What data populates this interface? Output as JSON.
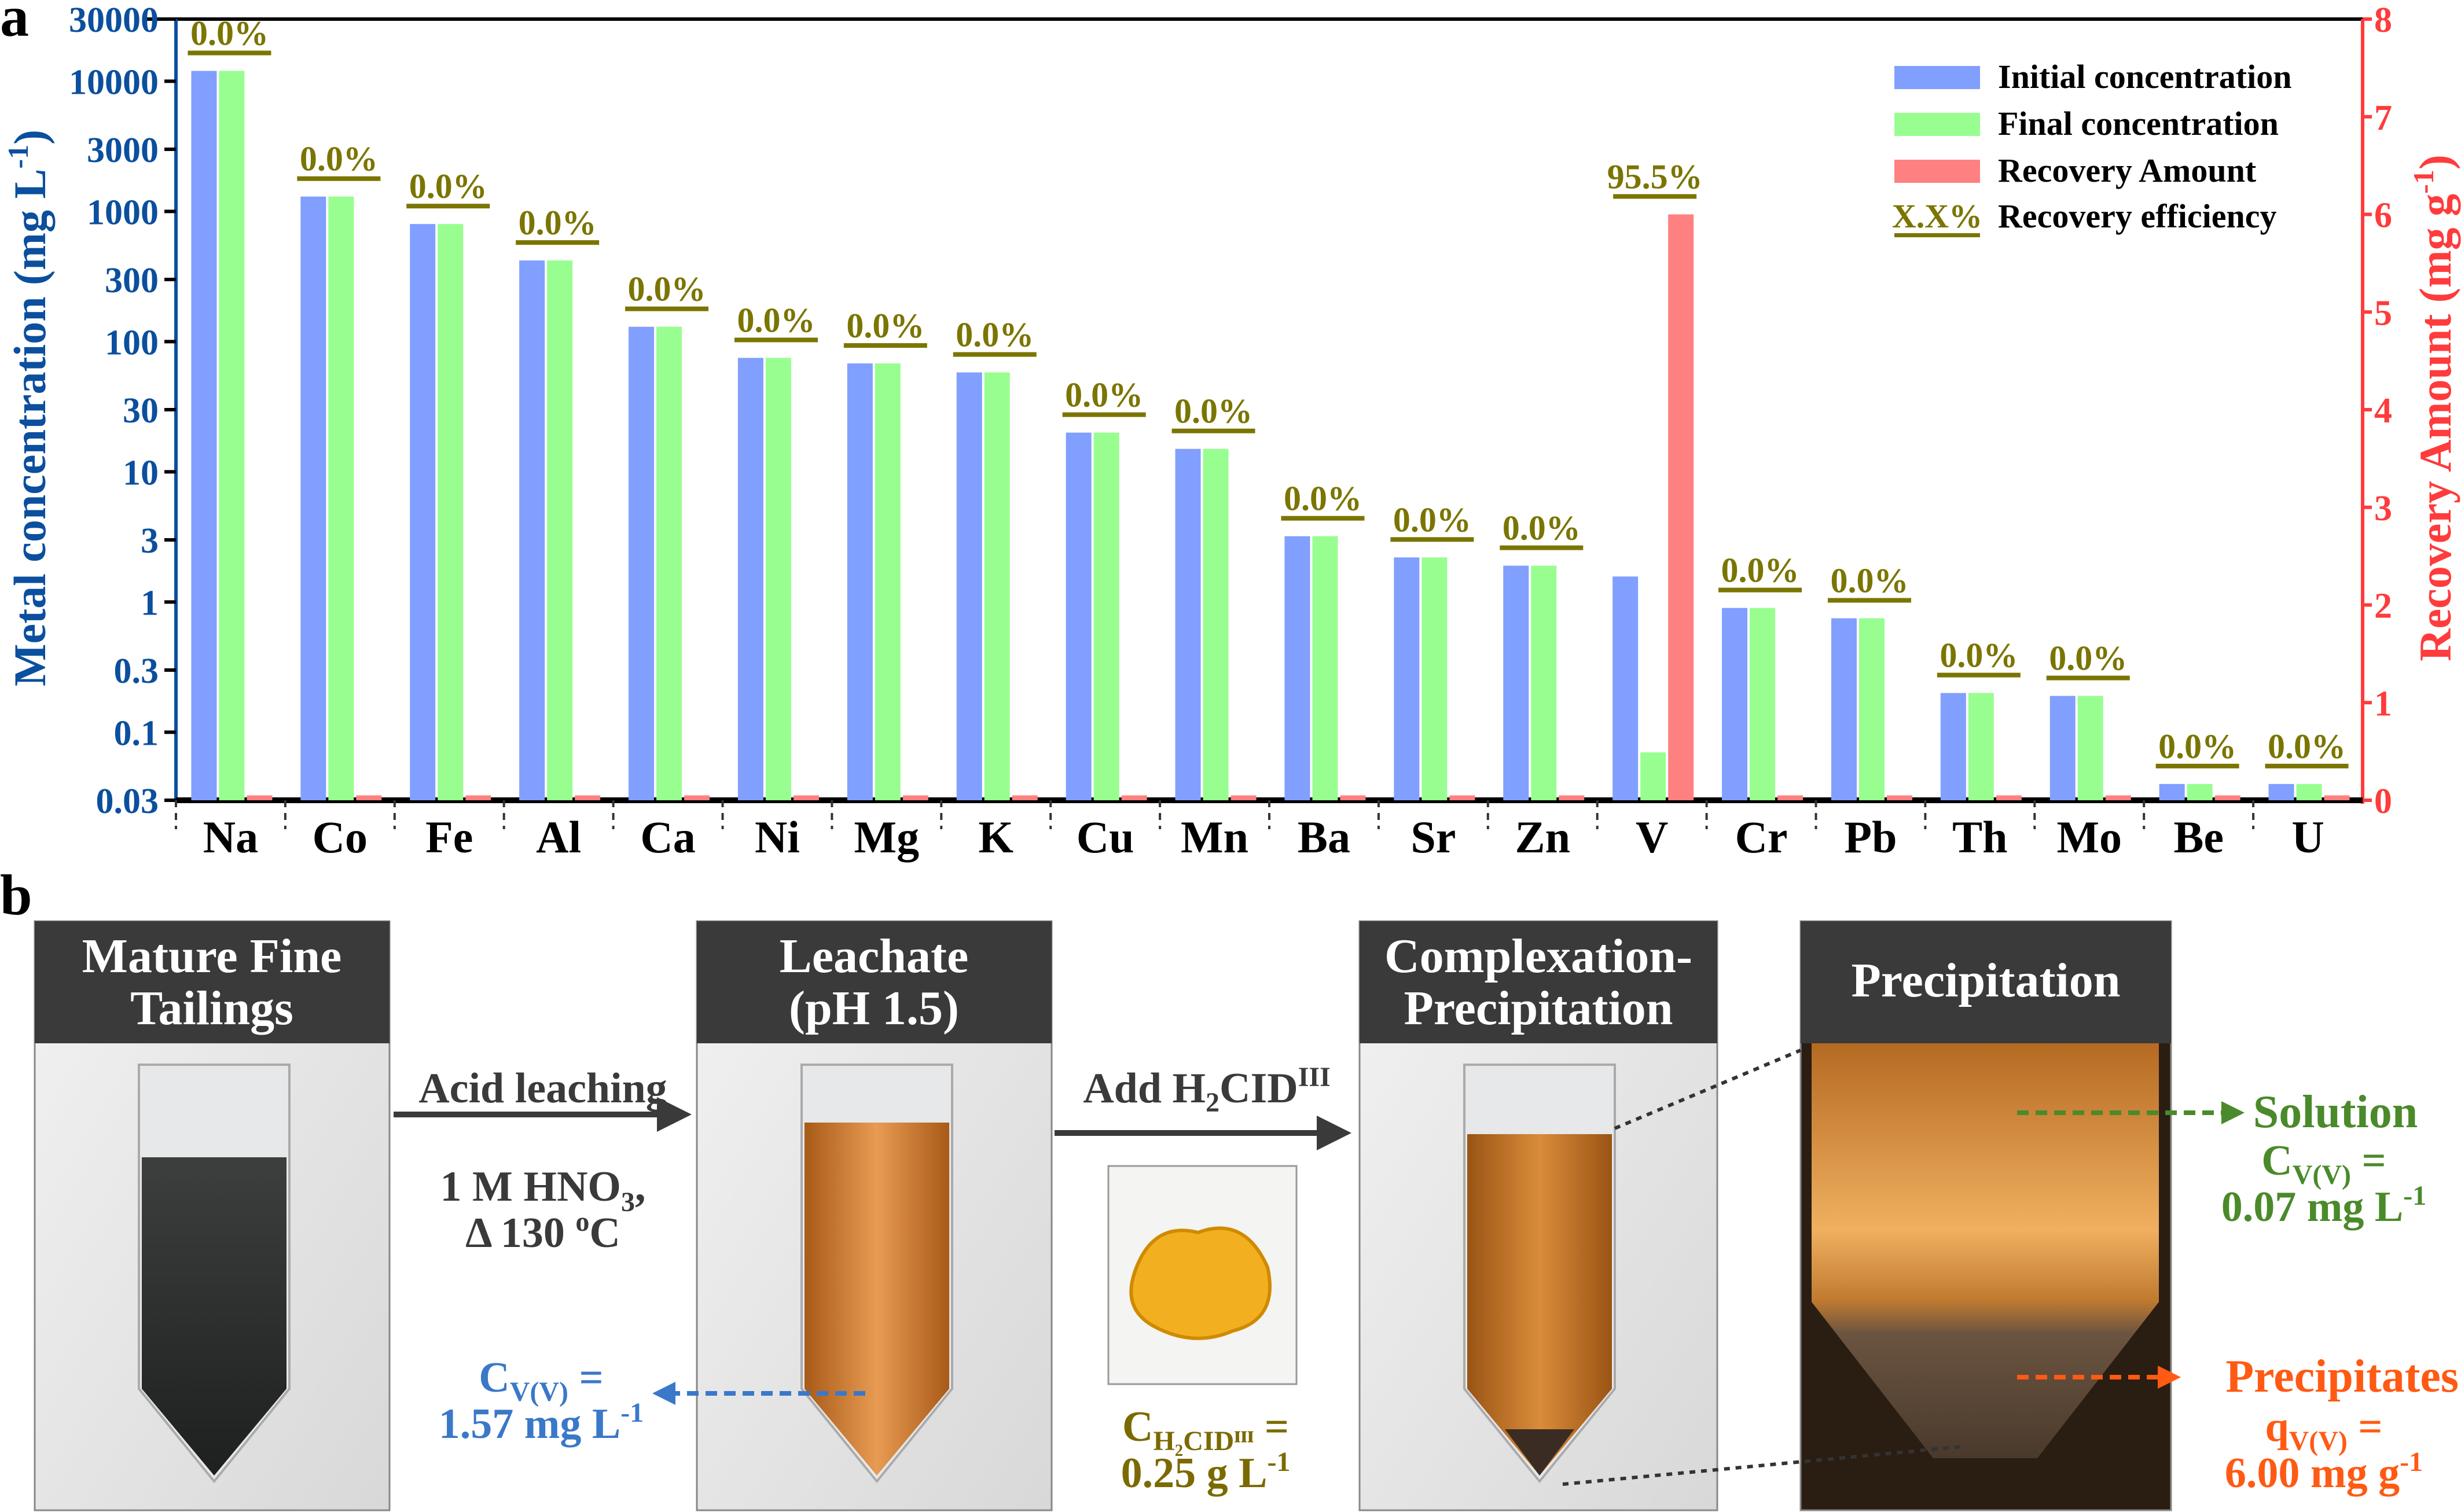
{
  "panel_labels": {
    "a": "a",
    "b": "b"
  },
  "chart_data": {
    "type": "bar",
    "categories": [
      "Na",
      "Co",
      "Fe",
      "Al",
      "Ca",
      "Ni",
      "Mg",
      "K",
      "Cu",
      "Mn",
      "Ba",
      "Sr",
      "Zn",
      "V",
      "Cr",
      "Pb",
      "Th",
      "Mo",
      "Be",
      "U"
    ],
    "y_left": {
      "label": "Metal concentration (mg L",
      "label_sup": "-1",
      "label_end": ")",
      "scale": "log",
      "range": [
        0.03,
        30000
      ],
      "ticks": [
        "0.03",
        "0.1",
        "0.3",
        "1",
        "3",
        "10",
        "30",
        "100",
        "300",
        "1000",
        "3000",
        "10000",
        "30000"
      ],
      "color": "#0b4f9e"
    },
    "y_right": {
      "label": "Recovery Amount (mg g",
      "label_sup": "-1",
      "label_end": ")",
      "scale": "linear",
      "range": [
        0,
        8
      ],
      "ticks": [
        "0",
        "1",
        "2",
        "3",
        "4",
        "5",
        "6",
        "7",
        "8"
      ],
      "color": "#ff3b3b"
    },
    "series": [
      {
        "name": "Initial concentration",
        "axis": "left",
        "color": "#809ffe",
        "values": [
          12000,
          1300,
          800,
          420,
          130,
          75,
          68,
          58,
          20,
          15,
          3.2,
          2.2,
          1.9,
          1.57,
          0.9,
          0.75,
          0.2,
          0.19,
          0.04,
          0.04
        ]
      },
      {
        "name": "Final concentration",
        "axis": "left",
        "color": "#98fe90",
        "values": [
          12000,
          1300,
          800,
          420,
          130,
          75,
          68,
          58,
          20,
          15,
          3.2,
          2.2,
          1.9,
          0.07,
          0.9,
          0.75,
          0.2,
          0.19,
          0.04,
          0.04
        ]
      },
      {
        "name": "Recovery Amount",
        "axis": "right",
        "color": "#fe8080",
        "values": [
          0.05,
          0.05,
          0.05,
          0.05,
          0.05,
          0.05,
          0.05,
          0.05,
          0.05,
          0.05,
          0.05,
          0.05,
          0.05,
          6.0,
          0.05,
          0.05,
          0.05,
          0.05,
          0.05,
          0.05
        ]
      }
    ],
    "recovery_efficiency": [
      "0.0%",
      "0.0%",
      "0.0%",
      "0.0%",
      "0.0%",
      "0.0%",
      "0.0%",
      "0.0%",
      "0.0%",
      "0.0%",
      "0.0%",
      "0.0%",
      "0.0%",
      "95.5%",
      "0.0%",
      "0.0%",
      "0.0%",
      "0.0%",
      "0.0%",
      "0.0%"
    ],
    "legend": {
      "position": "top-right",
      "items": [
        "Initial concentration",
        "Final concentration",
        "Recovery Amount",
        "Recovery efficiency"
      ],
      "efficiency_sample": "X.X%"
    },
    "efficiency_color": "#7b7500"
  },
  "process": {
    "steps": [
      {
        "title_1": "Mature Fine",
        "title_2": "Tailings"
      },
      {
        "title_1": "Leachate",
        "title_2": "(pH 1.5)"
      },
      {
        "title_1": "Complexation-",
        "title_2": "Precipitation"
      },
      {
        "title_1": "Precipitation"
      }
    ],
    "arrow1": {
      "label": "Acid leaching",
      "cond1_a": "1 M HNO",
      "cond1_sub": "3",
      "cond1_b": ",",
      "cond2_a": "Δ 130 ",
      "cond2_sup": "o",
      "cond2_b": "C"
    },
    "arrow2": {
      "label_a": "Add H",
      "label_sub": "2",
      "label_b": "CID",
      "label_sup": "III"
    },
    "leachate_conc": {
      "a": "C",
      "sub": "V(V)",
      "b": " =",
      "value": "1.57 mg L",
      "sup": "-1",
      "color": "#3a78c9"
    },
    "reagent_conc": {
      "a": "C",
      "sub": "H₂CIDᴵᴵᴵ",
      "b": " =",
      "value": "0.25 g L",
      "sup": "-1",
      "color": "#7b6a00"
    },
    "solution": {
      "label": "Solution",
      "a": "C",
      "sub": "V(V)",
      "b": " =",
      "value": "0.07 mg L",
      "sup": "-1",
      "color": "#4a8a2a"
    },
    "precipitates": {
      "label": "Precipitates",
      "a": "q",
      "sub": "V(V)",
      "b": " =",
      "value": "6.00 mg g",
      "sup": "-1",
      "color": "#ff5a14"
    }
  }
}
